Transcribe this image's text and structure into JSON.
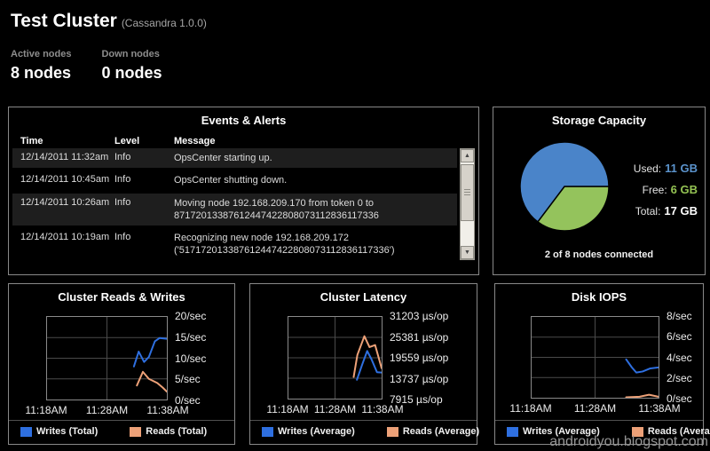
{
  "header": {
    "title": "Test Cluster",
    "version": "(Cassandra 1.0.0)",
    "stats": [
      {
        "label": "Active nodes",
        "value": "8 nodes"
      },
      {
        "label": "Down nodes",
        "value": "0 nodes"
      }
    ]
  },
  "events": {
    "title": "Events & Alerts",
    "columns": [
      "Time",
      "Level",
      "Message"
    ],
    "rows": [
      {
        "time": "12/14/2011 11:32am",
        "level": "Info",
        "message": "OpsCenter starting up."
      },
      {
        "time": "12/14/2011 10:45am",
        "level": "Info",
        "message": "OpsCenter shutting down."
      },
      {
        "time": "12/14/2011 10:26am",
        "level": "Info",
        "message": "Moving node 192.168.209.170 from token 0 to 87172013387612447422808073112836117336"
      },
      {
        "time": "12/14/2011 10:19am",
        "level": "Info",
        "message": "Recognizing new node 192.168.209.172 ('517172013387612447422808073112836117336')"
      }
    ]
  },
  "chart_data": [
    {
      "id": "storage-pie",
      "type": "pie",
      "title": "Storage Capacity",
      "slices": [
        {
          "label": "Free",
          "value_gb": 6,
          "color": "#94c35c"
        },
        {
          "label": "Used",
          "value_gb": 11,
          "color": "#4a84c9"
        }
      ],
      "start_angle_deg": 0,
      "direction": "clockwise",
      "info_rows": [
        {
          "label": "Used:",
          "value": "11 GB",
          "color": "#5b93cc"
        },
        {
          "label": "Free:",
          "value": "6 GB",
          "color": "#94c353"
        },
        {
          "label": "Total:",
          "value": "17 GB",
          "color": "#ffffff"
        }
      ],
      "footer": "2 of 8 nodes connected"
    },
    {
      "id": "chart-rw",
      "type": "line",
      "title": "Cluster Reads & Writes",
      "x_ticks": [
        "11:18AM",
        "11:28AM",
        "11:38AM"
      ],
      "y_ticks": [
        "20/sec",
        "15/sec",
        "10/sec",
        "5/sec",
        "0/sec"
      ],
      "ylim": [
        0,
        20
      ],
      "xlim_minutes": [
        0,
        20
      ],
      "grid": true,
      "legend_position": "bottom",
      "series": [
        {
          "name": "Writes (Total)",
          "color": "#2e6fe0",
          "points": [
            [
              14.5,
              8.0
            ],
            [
              15.3,
              11.6
            ],
            [
              16.2,
              9.1
            ],
            [
              17.0,
              10.3
            ],
            [
              18.0,
              14.1
            ],
            [
              18.8,
              14.9
            ],
            [
              20,
              14.7
            ]
          ]
        },
        {
          "name": "Reads (Total)",
          "color": "#eda178",
          "points": [
            [
              15.0,
              3.4
            ],
            [
              16.0,
              6.7
            ],
            [
              17.0,
              5.0
            ],
            [
              18.4,
              4.0
            ],
            [
              19.3,
              2.9
            ],
            [
              20,
              1.9
            ]
          ]
        }
      ]
    },
    {
      "id": "chart-lat",
      "type": "line",
      "title": "Cluster Latency",
      "x_ticks": [
        "11:18AM",
        "11:28AM",
        "11:38AM"
      ],
      "y_ticks": [
        "31203 µs/op",
        "25381 µs/op",
        "19559 µs/op",
        "13737 µs/op",
        "7915 µs/op"
      ],
      "ylim": [
        7915,
        31203
      ],
      "xlim_minutes": [
        0,
        20
      ],
      "grid": true,
      "legend_position": "bottom",
      "series": [
        {
          "name": "Writes (Average)",
          "color": "#2e6fe0",
          "points": [
            [
              14.7,
              13300
            ],
            [
              15.8,
              17500
            ],
            [
              16.9,
              21500
            ],
            [
              17.8,
              19200
            ],
            [
              19.0,
              15450
            ],
            [
              20,
              15350
            ]
          ]
        },
        {
          "name": "Reads (Average)",
          "color": "#eda178",
          "points": [
            [
              14.0,
              14100
            ],
            [
              14.8,
              20400
            ],
            [
              16.3,
              25700
            ],
            [
              17.4,
              22600
            ],
            [
              18.6,
              23200
            ],
            [
              20,
              16600
            ]
          ]
        }
      ]
    },
    {
      "id": "chart-iops",
      "type": "line",
      "title": "Disk IOPS",
      "x_ticks": [
        "11:18AM",
        "11:28AM",
        "11:38AM"
      ],
      "y_ticks": [
        "8/sec",
        "6/sec",
        "4/sec",
        "2/sec",
        "0/sec"
      ],
      "ylim": [
        0,
        8
      ],
      "xlim_minutes": [
        0,
        20
      ],
      "grid": true,
      "legend_position": "bottom",
      "series": [
        {
          "name": "Writes (Average)",
          "color": "#2e6fe0",
          "points": [
            [
              14.9,
              3.8
            ],
            [
              15.8,
              3.0
            ],
            [
              16.5,
              2.5
            ],
            [
              17.5,
              2.6
            ],
            [
              18.7,
              2.9
            ],
            [
              20,
              3.0
            ]
          ]
        },
        {
          "name": "Reads (Average)",
          "color": "#eda178",
          "points": [
            [
              14.9,
              0.05
            ],
            [
              17.0,
              0.1
            ],
            [
              18.5,
              0.3
            ],
            [
              20,
              0.1
            ]
          ]
        }
      ]
    }
  ],
  "watermark": "androidyou.blogspot.com"
}
